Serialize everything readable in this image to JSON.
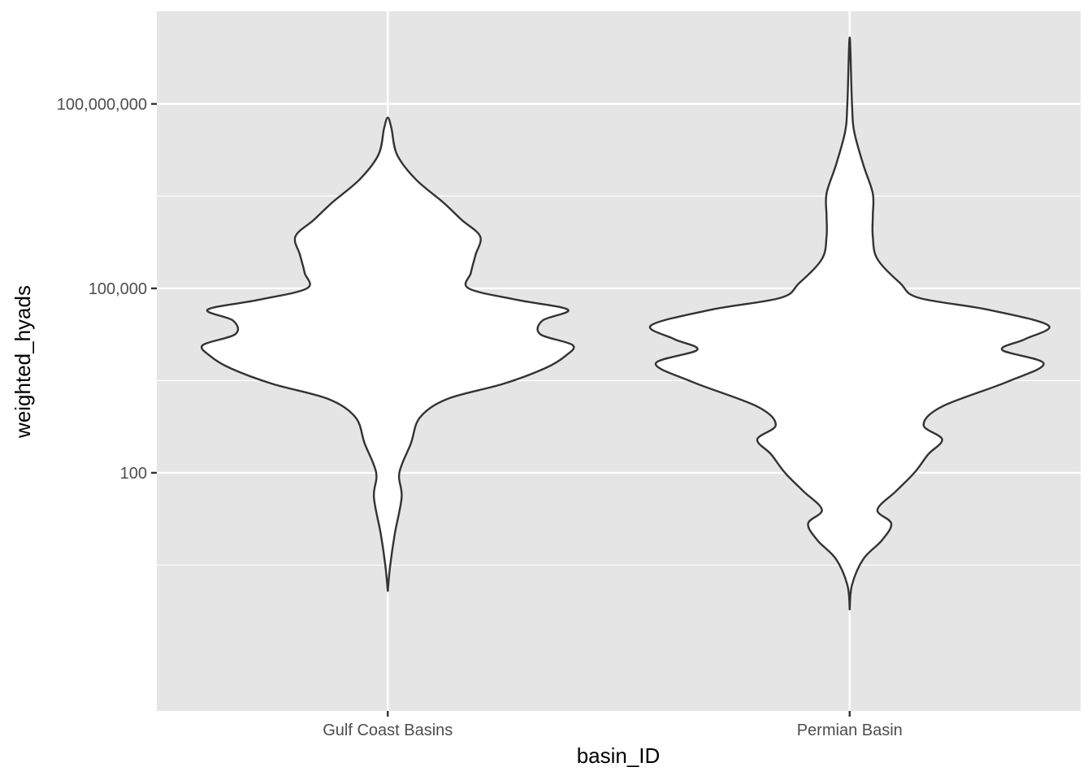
{
  "chart_data": {
    "type": "violin",
    "xlabel": "basin_ID",
    "ylabel": "weighted_hyads",
    "y_scale": "log10",
    "ylim": [
      0.0134,
      3200000000.0
    ],
    "y_ticks": [
      {
        "value": 100,
        "label": "100"
      },
      {
        "value": 100000,
        "label": "100,000"
      },
      {
        "value": 100000000,
        "label": "100,000,000"
      }
    ],
    "y_minor_ticks": [
      3.16,
      3162,
      3162278
    ],
    "categories": [
      "Gulf Coast Basins",
      "Permian Basin"
    ],
    "grid": true,
    "panel_background": "#e5e5e5",
    "violin_fill": "#ffffff",
    "violin_outline": "#333333",
    "series": [
      {
        "name": "Gulf Coast Basins",
        "profile": [
          {
            "y": 1.2,
            "halfwidth": 0.0
          },
          {
            "y": 3.0,
            "halfwidth": 0.005
          },
          {
            "y": 10,
            "halfwidth": 0.015
          },
          {
            "y": 40,
            "halfwidth": 0.03
          },
          {
            "y": 100,
            "halfwidth": 0.025
          },
          {
            "y": 300,
            "halfwidth": 0.05
          },
          {
            "y": 800,
            "halfwidth": 0.07
          },
          {
            "y": 1600,
            "halfwidth": 0.13
          },
          {
            "y": 2800,
            "halfwidth": 0.25
          },
          {
            "y": 5000,
            "halfwidth": 0.34
          },
          {
            "y": 8000,
            "halfwidth": 0.385
          },
          {
            "y": 12000,
            "halfwidth": 0.4
          },
          {
            "y": 18000,
            "halfwidth": 0.33
          },
          {
            "y": 30000,
            "halfwidth": 0.335
          },
          {
            "y": 45000,
            "halfwidth": 0.39
          },
          {
            "y": 65000,
            "halfwidth": 0.28
          },
          {
            "y": 100000,
            "halfwidth": 0.175
          },
          {
            "y": 180000,
            "halfwidth": 0.18
          },
          {
            "y": 350000,
            "halfwidth": 0.19
          },
          {
            "y": 700000,
            "halfwidth": 0.2
          },
          {
            "y": 1300000,
            "halfwidth": 0.16
          },
          {
            "y": 2500000,
            "halfwidth": 0.12
          },
          {
            "y": 6000000,
            "halfwidth": 0.06
          },
          {
            "y": 15000000,
            "halfwidth": 0.02
          },
          {
            "y": 40000000,
            "halfwidth": 0.008
          },
          {
            "y": 60000000,
            "halfwidth": 0.0
          }
        ]
      },
      {
        "name": "Permian Basin",
        "profile": [
          {
            "y": 0.6,
            "halfwidth": 0.0
          },
          {
            "y": 1.5,
            "halfwidth": 0.005
          },
          {
            "y": 4.0,
            "halfwidth": 0.03
          },
          {
            "y": 8,
            "halfwidth": 0.07
          },
          {
            "y": 15,
            "halfwidth": 0.09
          },
          {
            "y": 25,
            "halfwidth": 0.06
          },
          {
            "y": 50,
            "halfwidth": 0.1
          },
          {
            "y": 100,
            "halfwidth": 0.14
          },
          {
            "y": 200,
            "halfwidth": 0.17
          },
          {
            "y": 350,
            "halfwidth": 0.2
          },
          {
            "y": 600,
            "halfwidth": 0.16
          },
          {
            "y": 1200,
            "halfwidth": 0.2
          },
          {
            "y": 3000,
            "halfwidth": 0.34
          },
          {
            "y": 6000,
            "halfwidth": 0.42
          },
          {
            "y": 10000,
            "halfwidth": 0.33
          },
          {
            "y": 15000,
            "halfwidth": 0.38
          },
          {
            "y": 25000,
            "halfwidth": 0.43
          },
          {
            "y": 45000,
            "halfwidth": 0.3
          },
          {
            "y": 70000,
            "halfwidth": 0.15
          },
          {
            "y": 120000,
            "halfwidth": 0.11
          },
          {
            "y": 300000,
            "halfwidth": 0.06
          },
          {
            "y": 700000,
            "halfwidth": 0.05
          },
          {
            "y": 1500000,
            "halfwidth": 0.05
          },
          {
            "y": 3500000,
            "halfwidth": 0.05
          },
          {
            "y": 10000000,
            "halfwidth": 0.03
          },
          {
            "y": 35000000,
            "halfwidth": 0.01
          },
          {
            "y": 100000000,
            "halfwidth": 0.005
          },
          {
            "y": 1200000000,
            "halfwidth": 0.0
          }
        ]
      }
    ]
  }
}
